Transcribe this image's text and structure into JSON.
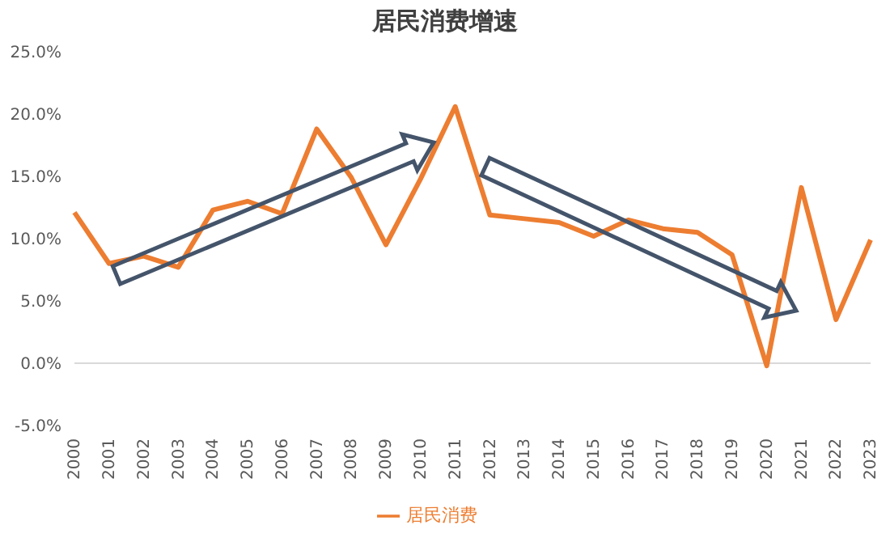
{
  "chart_data": {
    "type": "line",
    "title": "居民消费增速",
    "categories": [
      "2000",
      "2001",
      "2002",
      "2003",
      "2004",
      "2005",
      "2006",
      "2007",
      "2008",
      "2009",
      "2010",
      "2011",
      "2012",
      "2013",
      "2014",
      "2015",
      "2016",
      "2017",
      "2018",
      "2019",
      "2020",
      "2021",
      "2022",
      "2023"
    ],
    "series": [
      {
        "name": "居民消费",
        "color": "#ed7d31",
        "values": [
          12.1,
          8.0,
          8.6,
          7.7,
          12.3,
          13.0,
          12.0,
          18.8,
          14.9,
          9.5,
          14.8,
          20.6,
          11.9,
          11.6,
          11.3,
          10.2,
          11.5,
          10.8,
          10.5,
          8.7,
          -0.2,
          14.1,
          3.5,
          9.9
        ]
      }
    ],
    "ylim": [
      -5,
      25
    ],
    "yticks": [
      {
        "value": -5,
        "label": "-5.0%"
      },
      {
        "value": 0,
        "label": "0.0%"
      },
      {
        "value": 5,
        "label": "5.0%"
      },
      {
        "value": 10,
        "label": "10.0%"
      },
      {
        "value": 15,
        "label": "15.0%"
      },
      {
        "value": 20,
        "label": "20.0%"
      },
      {
        "value": 25,
        "label": "25.0%"
      }
    ],
    "grid": false,
    "ref_lines": [
      {
        "axis": "y",
        "value": 0,
        "color": "#d9d9d9"
      }
    ],
    "legend": "bottom",
    "marker": "none",
    "line_style": "solid"
  }
}
